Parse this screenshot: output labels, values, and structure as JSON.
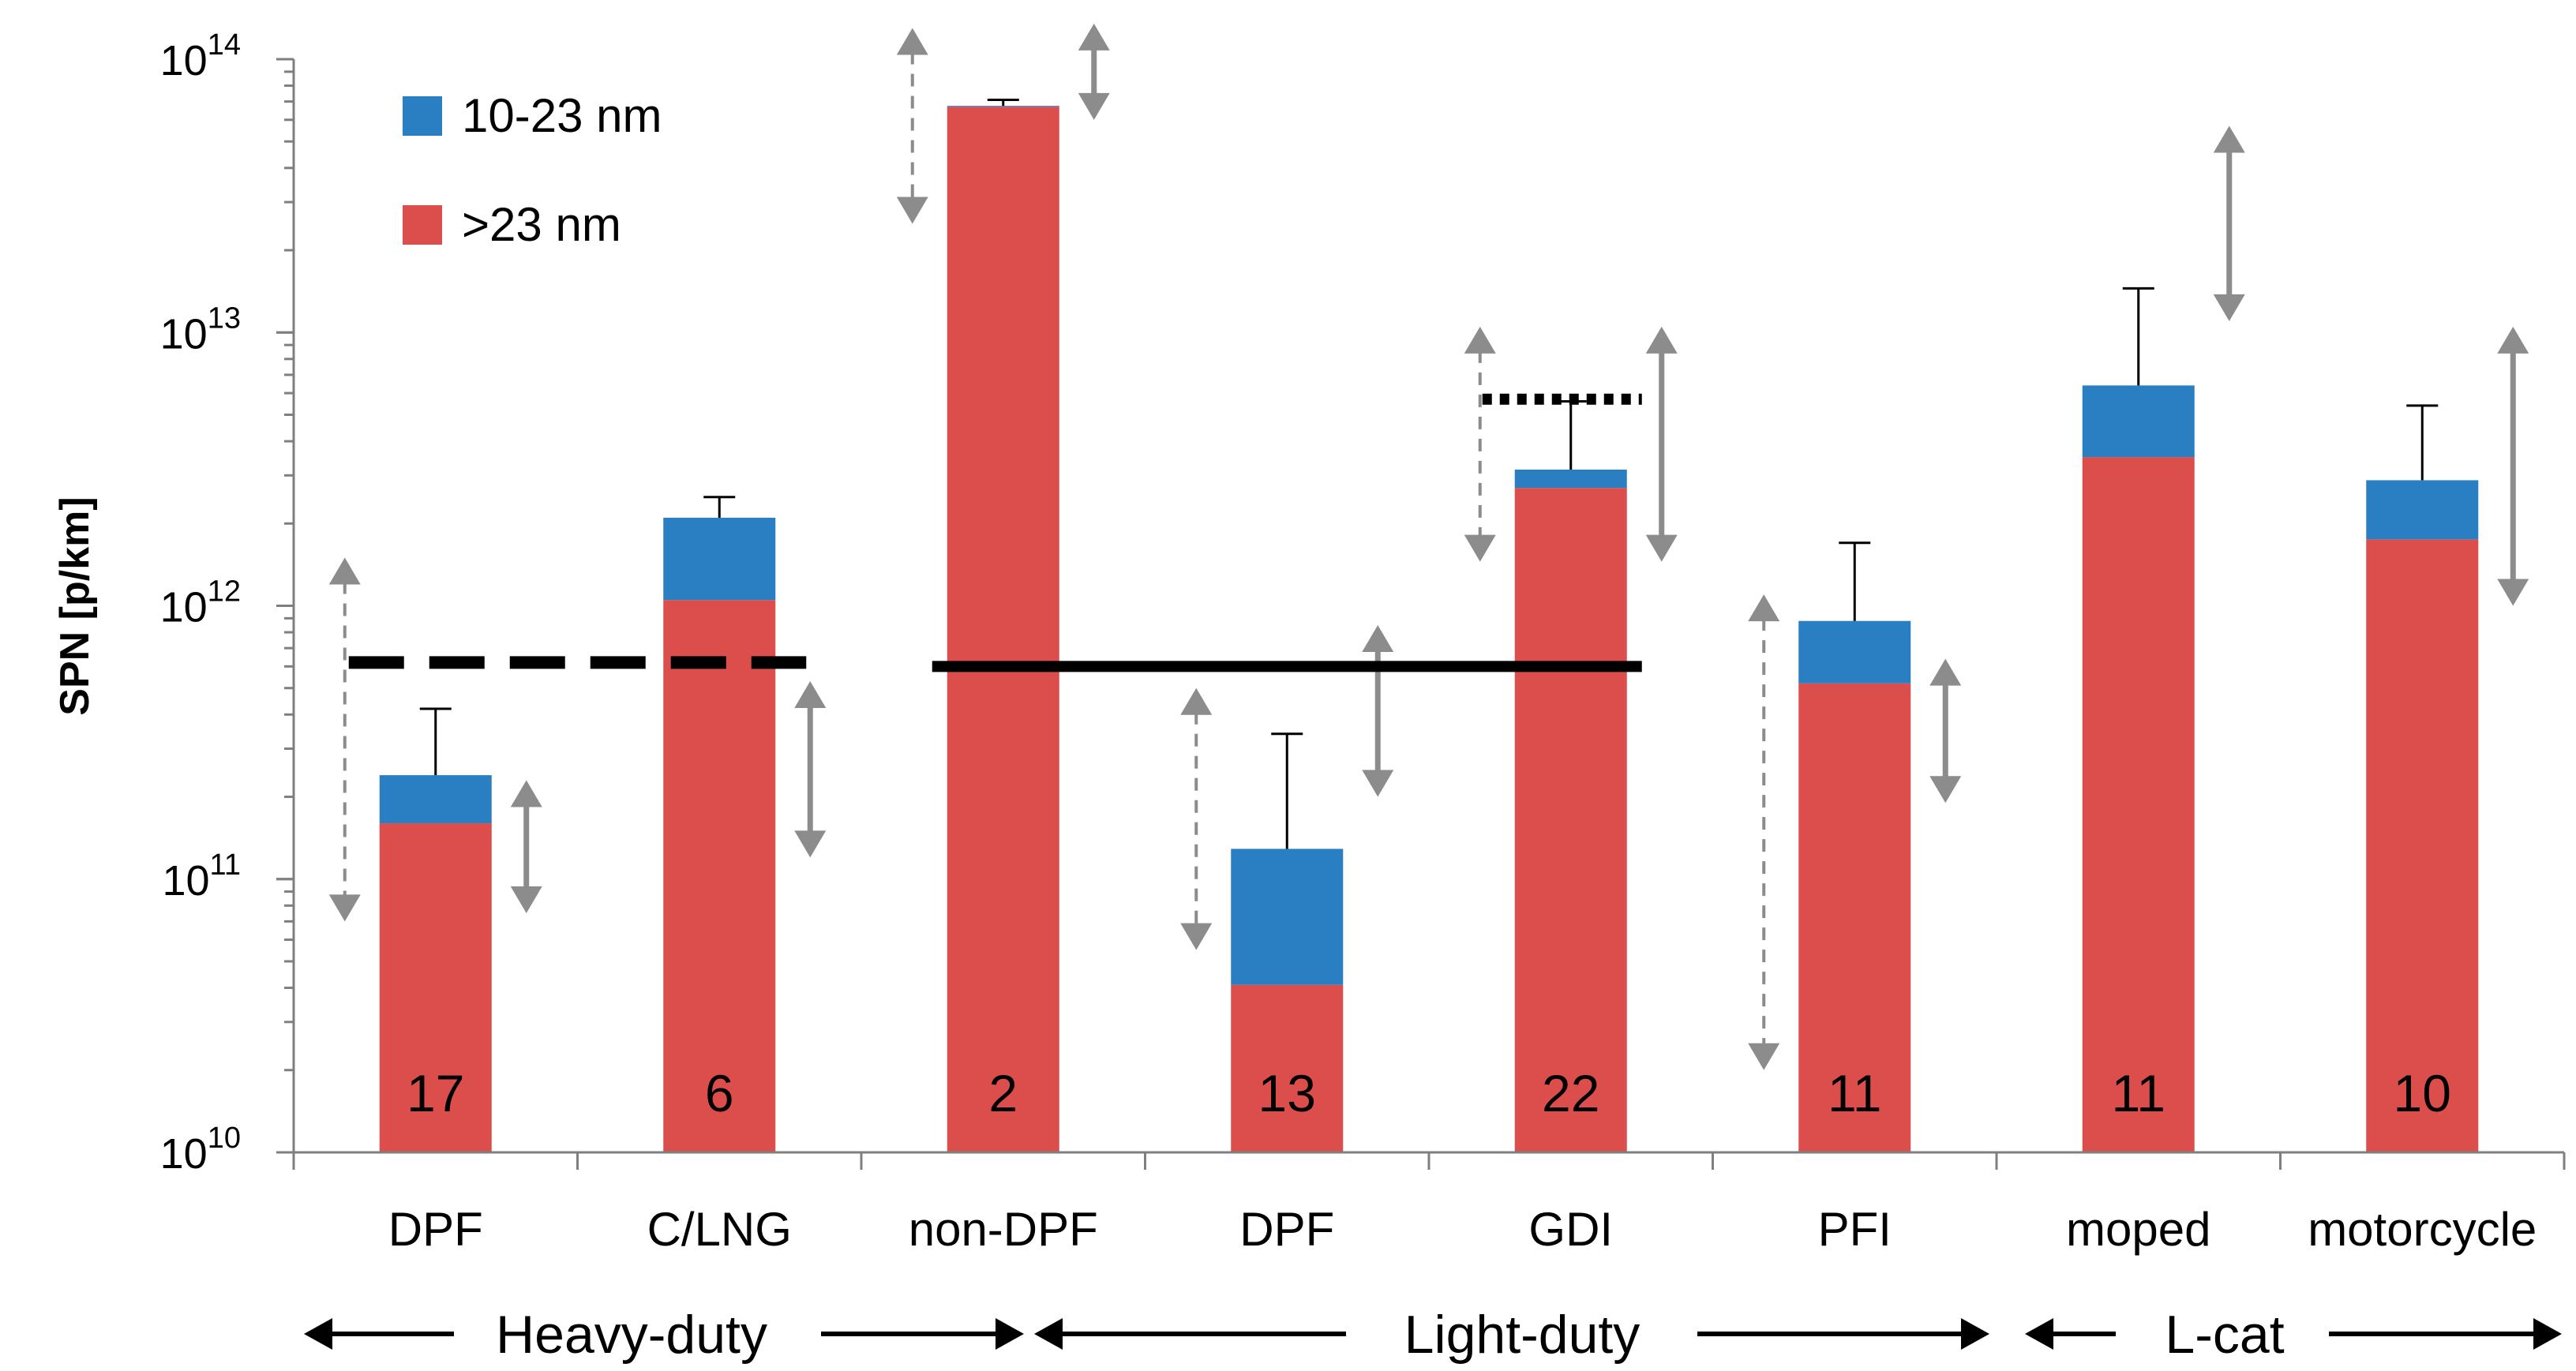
{
  "colors": {
    "small": "#2a7fc2",
    "large": "#db4e4b",
    "arrow": "#8c8c8c",
    "axis": "#7f7f7f",
    "text": "#000000"
  },
  "chart_data": {
    "type": "bar",
    "stacked": true,
    "y_scale": "log",
    "ylabel": "SPN [p/km]",
    "ylim": [
      10000000000.0,
      100000000000000.0
    ],
    "yticks": [
      {
        "value": 10000000000.0,
        "base": "10",
        "exp": "10"
      },
      {
        "value": 100000000000.0,
        "base": "10",
        "exp": "11"
      },
      {
        "value": 1000000000000.0,
        "base": "10",
        "exp": "12"
      },
      {
        "value": 10000000000000.0,
        "base": "10",
        "exp": "13"
      },
      {
        "value": 100000000000000.0,
        "base": "10",
        "exp": "14"
      }
    ],
    "legend": {
      "position": "top-left",
      "entries": [
        {
          "name": "10-23 nm",
          "series": "small"
        },
        {
          "name": ">23 nm",
          "series": "large"
        }
      ]
    },
    "categories": [
      "DPF",
      "C/LNG",
      "non-DPF",
      "DPF",
      "GDI",
      "PFI",
      "moped",
      "motorcycle"
    ],
    "counts": [
      "17",
      "6",
      "2",
      "13",
      "22",
      "11",
      "11",
      "10"
    ],
    "series": [
      {
        "name": ">23 nm",
        "key": "large",
        "values": [
          160000000000.0,
          1050000000000.0,
          67000000000000.0,
          41000000000.0,
          2700000000000.0,
          520000000000.0,
          3500000000000.0,
          1750000000000.0
        ]
      },
      {
        "name": "10-23 nm",
        "key": "small",
        "values": [
          80000000000.0,
          1050000000000.0,
          500000000000.0,
          88000000000.0,
          450000000000.0,
          360000000000.0,
          2900000000000.0,
          1130000000000.0
        ]
      }
    ],
    "totals": [
      240000000000.0,
      2100000000000.0,
      67500000000000.0,
      129000000000.0,
      3150000000000.0,
      880000000000.0,
      6400000000000.0,
      2880000000000.0
    ],
    "error_upper": [
      420000000000.0,
      2500000000000.0,
      71000000000000.0,
      340000000000.0,
      5600000000000.0,
      1700000000000.0,
      14500000000000.0,
      5400000000000.0
    ],
    "groups": [
      {
        "label": "Heavy-duty",
        "first": 0,
        "last": 2
      },
      {
        "label": "Light-duty",
        "first": 3,
        "last": 5
      },
      {
        "label": "L-cat",
        "first": 6,
        "last": 7
      }
    ],
    "limit_lines": [
      {
        "style": "dashed",
        "value": 620000000000.0,
        "from_cat": 0,
        "to_cat": 1
      },
      {
        "style": "solid",
        "value": 600000000000.0,
        "from_cat": 2,
        "to_cat": 4
      },
      {
        "style": "dotted",
        "value": 5700000000000.0,
        "from_cat": 4,
        "to_cat": 4
      }
    ],
    "range_arrows": [
      {
        "cat": 0,
        "side": "left",
        "style": "dashed",
        "low": 70000000000.0,
        "high": 1500000000000.0
      },
      {
        "cat": 0,
        "side": "right",
        "style": "solid",
        "low": 75000000000.0,
        "high": 230000000000.0
      },
      {
        "cat": 1,
        "side": "right",
        "style": "solid",
        "low": 120000000000.0,
        "high": 530000000000.0
      },
      {
        "cat": 2,
        "side": "left",
        "style": "dashed",
        "low": 25000000000000.0,
        "high": 130000000000000.0
      },
      {
        "cat": 2,
        "side": "right",
        "style": "solid",
        "low": 60000000000000.0,
        "high": 135000000000000.0
      },
      {
        "cat": 3,
        "side": "left",
        "style": "dashed",
        "low": 55000000000.0,
        "high": 500000000000.0
      },
      {
        "cat": 3,
        "side": "right",
        "style": "solid",
        "low": 200000000000.0,
        "high": 850000000000.0
      },
      {
        "cat": 4,
        "side": "left",
        "style": "dashed",
        "low": 1450000000000.0,
        "high": 10500000000000.0
      },
      {
        "cat": 4,
        "side": "right",
        "style": "solid",
        "low": 1450000000000.0,
        "high": 10500000000000.0
      },
      {
        "cat": 5,
        "side": "left",
        "style": "dashed",
        "low": 20000000000.0,
        "high": 1100000000000.0
      },
      {
        "cat": 5,
        "side": "right",
        "style": "solid",
        "low": 190000000000.0,
        "high": 640000000000.0
      },
      {
        "cat": 6,
        "side": "right",
        "style": "solid",
        "low": 11000000000000.0,
        "high": 57000000000000.0
      },
      {
        "cat": 7,
        "side": "right",
        "style": "solid",
        "low": 1000000000000.0,
        "high": 10500000000000.0
      }
    ]
  }
}
